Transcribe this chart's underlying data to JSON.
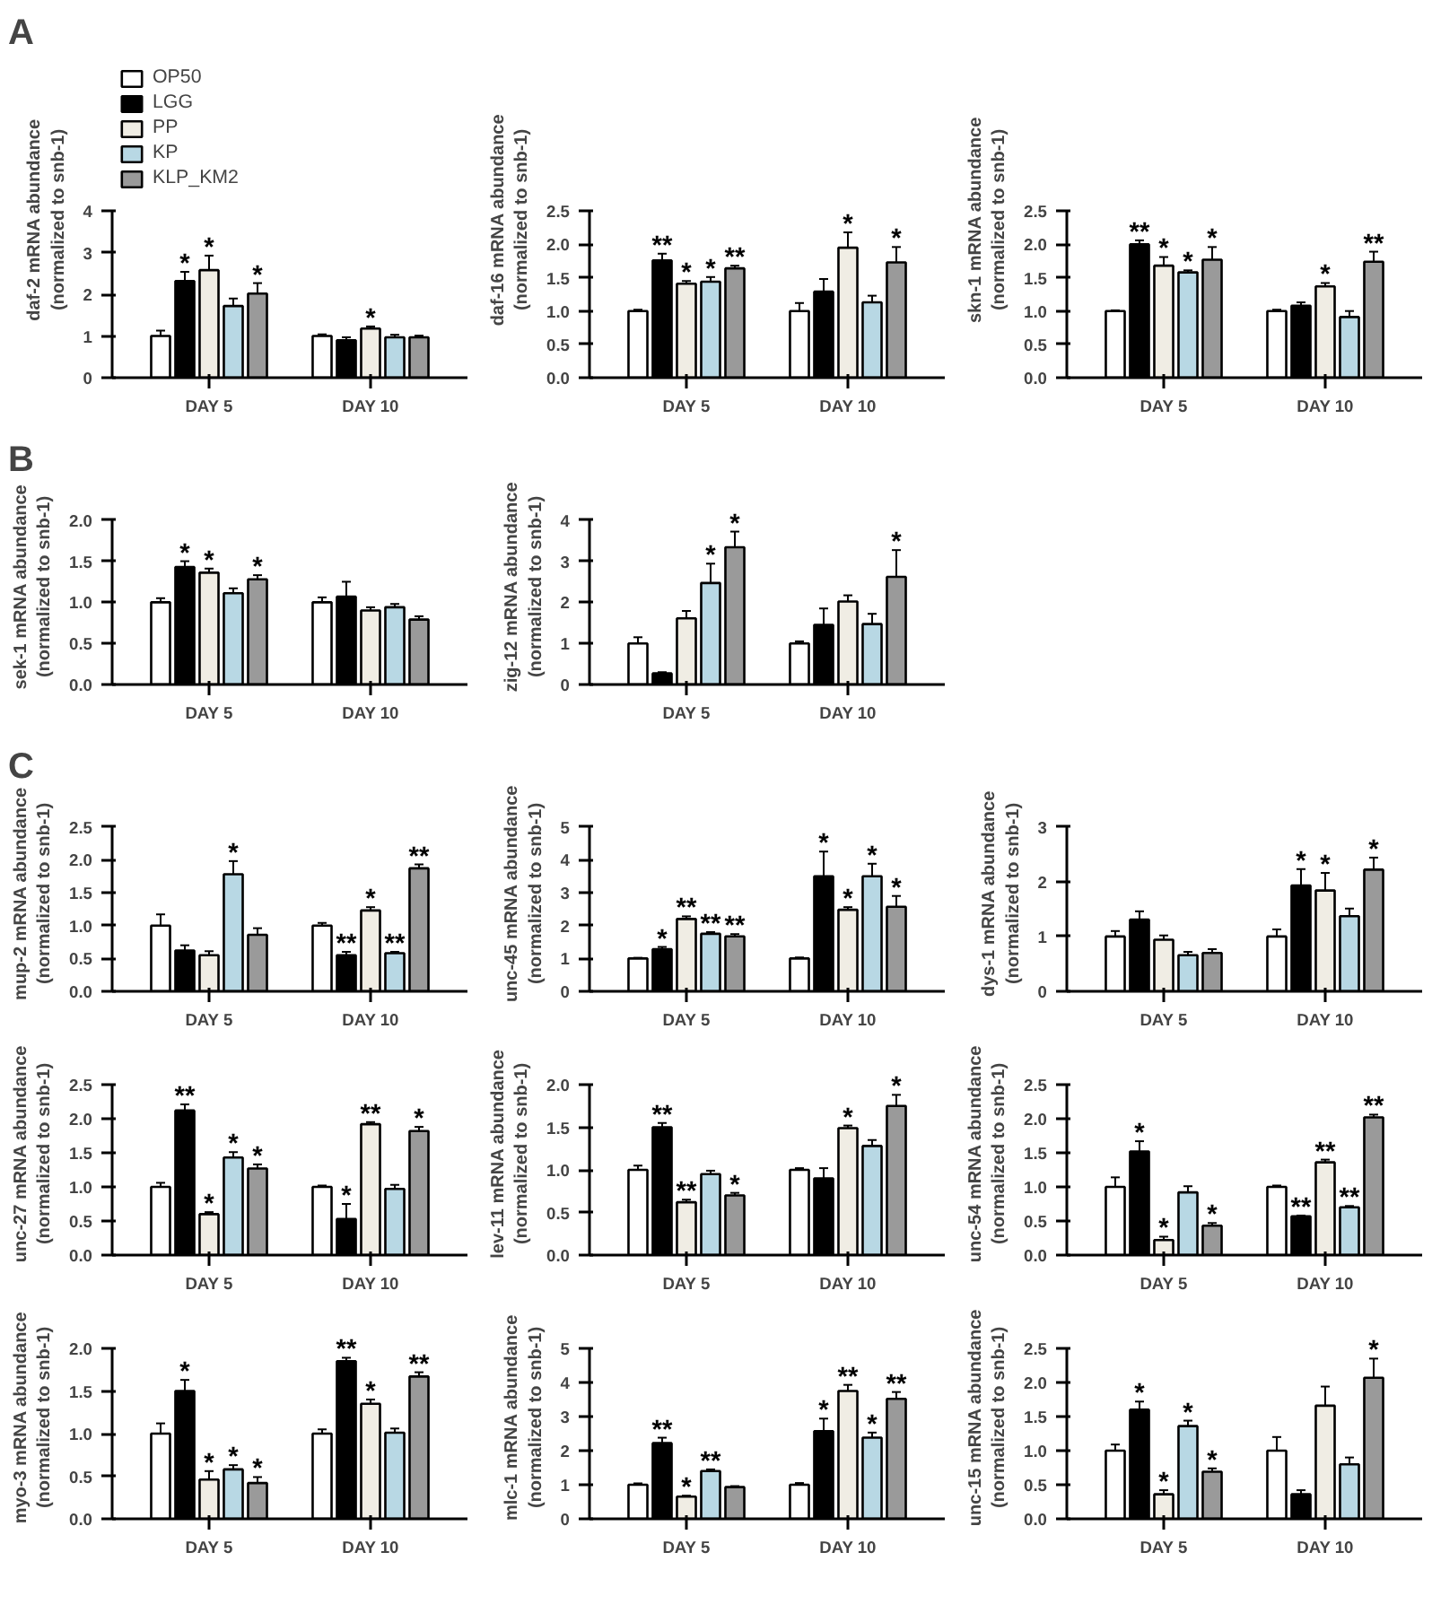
{
  "chart_data": [
    {
      "type": "bar",
      "title": "A",
      "legend": "top left",
      "ylabel": "daf-2 mRNA abundance\n(normalized to snb-1)",
      "categories": [
        "DAY 5",
        "DAY 10"
      ],
      "ylim": [
        0,
        4
      ],
      "yticks": [
        0,
        1,
        2,
        3,
        4
      ],
      "series": [
        {
          "name": "OP50",
          "color": "#ffffff",
          "values": [
            1.0,
            1.0
          ],
          "errors": [
            0.13,
            0.04
          ],
          "value_labels": [
            null,
            null
          ]
        },
        {
          "name": "LGG",
          "color": "#000000",
          "values": [
            2.32,
            0.9
          ],
          "errors": [
            0.22,
            0.07
          ],
          "value_labels": [
            "*",
            null
          ]
        },
        {
          "name": "PP",
          "color": "#f0ede4",
          "values": [
            2.58,
            1.18
          ],
          "errors": [
            0.35,
            0.05
          ],
          "value_labels": [
            "*",
            "*"
          ]
        },
        {
          "name": "KP",
          "color": "#b8d8e4",
          "values": [
            1.72,
            0.97
          ],
          "errors": [
            0.18,
            0.06
          ],
          "value_labels": [
            null,
            null
          ]
        },
        {
          "name": "KLP_KM2",
          "color": "#9a9a9a",
          "values": [
            2.02,
            0.97
          ],
          "errors": [
            0.25,
            0.04
          ],
          "value_labels": [
            "*",
            null
          ]
        }
      ]
    },
    {
      "type": "bar",
      "ylabel": "daf-16 mRNA abundance\n(normalized to snb-1)",
      "categories": [
        "DAY 5",
        "DAY 10"
      ],
      "ylim": [
        0,
        2.5
      ],
      "yticks": [
        {
          "value": 0,
          "label": "0.0"
        },
        {
          "value": 0.5,
          "label": "0.5"
        },
        {
          "value": 1,
          "label": "1.0"
        },
        {
          "value": 1.5,
          "label": "1.5"
        },
        {
          "value": 2,
          "label": "2.0"
        },
        {
          "value": 2.5,
          "label": "2.5"
        }
      ],
      "series": [
        {
          "color": "#ffffff",
          "values": [
            1.0,
            1.0
          ],
          "errors": [
            0.02,
            0.12
          ],
          "value_labels": [
            null,
            null
          ]
        },
        {
          "color": "#000000",
          "values": [
            1.76,
            1.29
          ],
          "errors": [
            0.1,
            0.19
          ],
          "value_labels": [
            "**",
            null
          ]
        },
        {
          "color": "#f0ede4",
          "values": [
            1.41,
            1.95
          ],
          "errors": [
            0.04,
            0.23
          ],
          "value_labels": [
            "*",
            "*"
          ]
        },
        {
          "color": "#b8d8e4",
          "values": [
            1.44,
            1.13
          ],
          "errors": [
            0.07,
            0.1
          ],
          "value_labels": [
            "*",
            null
          ]
        },
        {
          "color": "#9a9a9a",
          "values": [
            1.64,
            1.73
          ],
          "errors": [
            0.04,
            0.23
          ],
          "value_labels": [
            "**",
            "*"
          ]
        }
      ]
    },
    {
      "type": "bar",
      "ylabel": "skn-1 mRNA abundance\n(normalized to snb-1)",
      "categories": [
        "DAY 5",
        "DAY 10"
      ],
      "ylim": [
        0,
        2.5
      ],
      "yticks": [
        {
          "value": 0,
          "label": "0.0"
        },
        {
          "value": 0.5,
          "label": "0.5"
        },
        {
          "value": 1,
          "label": "1.0"
        },
        {
          "value": 1.5,
          "label": "1.5"
        },
        {
          "value": 2,
          "label": "2.0"
        },
        {
          "value": 2.5,
          "label": "2.5"
        }
      ],
      "series": [
        {
          "color": "#ffffff",
          "values": [
            1.0,
            1.0
          ],
          "errors": [
            0.01,
            0.02
          ],
          "value_labels": [
            null,
            null
          ]
        },
        {
          "color": "#000000",
          "values": [
            2.0,
            1.08
          ],
          "errors": [
            0.06,
            0.05
          ],
          "value_labels": [
            "**",
            null
          ]
        },
        {
          "color": "#f0ede4",
          "values": [
            1.68,
            1.37
          ],
          "errors": [
            0.13,
            0.05
          ],
          "value_labels": [
            "*",
            "*"
          ]
        },
        {
          "color": "#b8d8e4",
          "values": [
            1.58,
            0.91
          ],
          "errors": [
            0.03,
            0.09
          ],
          "value_labels": [
            "*",
            null
          ]
        },
        {
          "color": "#9a9a9a",
          "values": [
            1.77,
            1.74
          ],
          "errors": [
            0.19,
            0.15
          ],
          "value_labels": [
            "*",
            "**"
          ]
        }
      ]
    },
    {
      "type": "bar",
      "title": "B",
      "ylabel": "sek-1 mRNA abundance\n(normalized to snb-1)",
      "categories": [
        "DAY 5",
        "DAY 10"
      ],
      "ylim": [
        0,
        2
      ],
      "yticks": [
        {
          "value": 0,
          "label": "0.0"
        },
        {
          "value": 0.5,
          "label": "0.5"
        },
        {
          "value": 1,
          "label": "1.0"
        },
        {
          "value": 1.5,
          "label": "1.5"
        },
        {
          "value": 2,
          "label": "2.0"
        }
      ],
      "series": [
        {
          "color": "#ffffff",
          "values": [
            1.0,
            1.0
          ],
          "errors": [
            0.05,
            0.06
          ],
          "value_labels": [
            null,
            null
          ]
        },
        {
          "color": "#000000",
          "values": [
            1.43,
            1.07
          ],
          "errors": [
            0.07,
            0.18
          ],
          "value_labels": [
            "*",
            null
          ]
        },
        {
          "color": "#f0ede4",
          "values": [
            1.36,
            0.9
          ],
          "errors": [
            0.05,
            0.04
          ],
          "value_labels": [
            "*",
            null
          ]
        },
        {
          "color": "#b8d8e4",
          "values": [
            1.11,
            0.94
          ],
          "errors": [
            0.06,
            0.04
          ],
          "value_labels": [
            null,
            null
          ]
        },
        {
          "color": "#9a9a9a",
          "values": [
            1.28,
            0.79
          ],
          "errors": [
            0.05,
            0.04
          ],
          "value_labels": [
            "*",
            null
          ]
        }
      ]
    },
    {
      "type": "bar",
      "ylabel": "zig-12 mRNA abundance\n(normalized to snb-1)",
      "categories": [
        "DAY 5",
        "DAY 10"
      ],
      "ylim": [
        0,
        4
      ],
      "yticks": [
        0,
        1,
        2,
        3,
        4
      ],
      "series": [
        {
          "color": "#ffffff",
          "values": [
            1.0,
            1.0
          ],
          "errors": [
            0.15,
            0.05
          ],
          "value_labels": [
            null,
            null
          ]
        },
        {
          "color": "#000000",
          "values": [
            0.27,
            1.45
          ],
          "errors": [
            0.03,
            0.4
          ],
          "value_labels": [
            null,
            null
          ]
        },
        {
          "color": "#f0ede4",
          "values": [
            1.61,
            2.02
          ],
          "errors": [
            0.18,
            0.15
          ],
          "value_labels": [
            null,
            null
          ]
        },
        {
          "color": "#b8d8e4",
          "values": [
            2.47,
            1.47
          ],
          "errors": [
            0.47,
            0.25
          ],
          "value_labels": [
            "*",
            null
          ]
        },
        {
          "color": "#9a9a9a",
          "values": [
            3.34,
            2.62
          ],
          "errors": [
            0.38,
            0.65
          ],
          "value_labels": [
            "*",
            "*"
          ]
        }
      ]
    },
    {
      "type": "bar",
      "title": "C",
      "ylabel": "mup-2 mRNA abundance\n(normalized to snb-1)",
      "categories": [
        "DAY 5",
        "DAY 10"
      ],
      "ylim": [
        0,
        2.5
      ],
      "yticks": [
        {
          "value": 0,
          "label": "0.0"
        },
        {
          "value": 0.5,
          "label": "0.5"
        },
        {
          "value": 1,
          "label": "1.0"
        },
        {
          "value": 1.5,
          "label": "1.5"
        },
        {
          "value": 2,
          "label": "2.0"
        },
        {
          "value": 2.5,
          "label": "2.5"
        }
      ],
      "series": [
        {
          "color": "#ffffff",
          "values": [
            1.0,
            1.0
          ],
          "errors": [
            0.17,
            0.04
          ],
          "value_labels": [
            null,
            null
          ]
        },
        {
          "color": "#000000",
          "values": [
            0.62,
            0.55
          ],
          "errors": [
            0.08,
            0.05
          ],
          "value_labels": [
            null,
            "**"
          ]
        },
        {
          "color": "#f0ede4",
          "values": [
            0.55,
            1.23
          ],
          "errors": [
            0.06,
            0.05
          ],
          "value_labels": [
            null,
            "*"
          ]
        },
        {
          "color": "#b8d8e4",
          "values": [
            1.78,
            0.58
          ],
          "errors": [
            0.2,
            0.02
          ],
          "value_labels": [
            "*",
            "**"
          ]
        },
        {
          "color": "#9a9a9a",
          "values": [
            0.86,
            1.87
          ],
          "errors": [
            0.1,
            0.06
          ],
          "value_labels": [
            null,
            "**"
          ]
        }
      ]
    },
    {
      "type": "bar",
      "ylabel": "unc-45 mRNA abundance\n(normalized to snb-1)",
      "categories": [
        "DAY 5",
        "DAY 10"
      ],
      "ylim": [
        0,
        5
      ],
      "yticks": [
        0,
        1,
        2,
        3,
        4,
        5
      ],
      "series": [
        {
          "color": "#ffffff",
          "values": [
            1.0,
            1.0
          ],
          "errors": [
            0.02,
            0.03
          ],
          "value_labels": [
            null,
            null
          ]
        },
        {
          "color": "#000000",
          "values": [
            1.28,
            3.5
          ],
          "errors": [
            0.07,
            0.75
          ],
          "value_labels": [
            "*",
            "*"
          ]
        },
        {
          "color": "#f0ede4",
          "values": [
            2.2,
            2.48
          ],
          "errors": [
            0.08,
            0.08
          ],
          "value_labels": [
            "**",
            "*"
          ]
        },
        {
          "color": "#b8d8e4",
          "values": [
            1.75,
            3.5
          ],
          "errors": [
            0.05,
            0.38
          ],
          "value_labels": [
            "**",
            "*"
          ]
        },
        {
          "color": "#9a9a9a",
          "values": [
            1.67,
            2.57
          ],
          "errors": [
            0.07,
            0.33
          ],
          "value_labels": [
            "**",
            "*"
          ]
        }
      ]
    },
    {
      "type": "bar",
      "ylabel": "dys-1 mRNA abundance\n(normalized to snb-1)",
      "categories": [
        "DAY 5",
        "DAY 10"
      ],
      "ylim": [
        0,
        3
      ],
      "yticks": [
        0,
        1,
        2,
        3
      ],
      "series": [
        {
          "color": "#ffffff",
          "values": [
            1.0,
            1.0
          ],
          "errors": [
            0.1,
            0.13
          ],
          "value_labels": [
            null,
            null
          ]
        },
        {
          "color": "#000000",
          "values": [
            1.31,
            1.93
          ],
          "errors": [
            0.15,
            0.3
          ],
          "value_labels": [
            null,
            "*"
          ]
        },
        {
          "color": "#f0ede4",
          "values": [
            0.94,
            1.84
          ],
          "errors": [
            0.08,
            0.32
          ],
          "value_labels": [
            null,
            "*"
          ]
        },
        {
          "color": "#b8d8e4",
          "values": [
            0.66,
            1.37
          ],
          "errors": [
            0.06,
            0.14
          ],
          "value_labels": [
            null,
            null
          ]
        },
        {
          "color": "#9a9a9a",
          "values": [
            0.7,
            2.22
          ],
          "errors": [
            0.07,
            0.22
          ],
          "value_labels": [
            null,
            "*"
          ]
        }
      ]
    },
    {
      "type": "bar",
      "ylabel": "unc-27 mRNA abundance\n(normalized to snb-1)",
      "categories": [
        "DAY 5",
        "DAY 10"
      ],
      "ylim": [
        0,
        2.5
      ],
      "yticks": [
        {
          "value": 0,
          "label": "0.0"
        },
        {
          "value": 0.5,
          "label": "0.5"
        },
        {
          "value": 1,
          "label": "1.0"
        },
        {
          "value": 1.5,
          "label": "1.5"
        },
        {
          "value": 2,
          "label": "2.0"
        },
        {
          "value": 2.5,
          "label": "2.5"
        }
      ],
      "series": [
        {
          "color": "#ffffff",
          "values": [
            1.0,
            1.0
          ],
          "errors": [
            0.06,
            0.02
          ],
          "value_labels": [
            null,
            null
          ]
        },
        {
          "color": "#000000",
          "values": [
            2.12,
            0.53
          ],
          "errors": [
            0.09,
            0.22
          ],
          "value_labels": [
            "**",
            "*"
          ]
        },
        {
          "color": "#f0ede4",
          "values": [
            0.6,
            1.92
          ],
          "errors": [
            0.03,
            0.03
          ],
          "value_labels": [
            "*",
            "**"
          ]
        },
        {
          "color": "#b8d8e4",
          "values": [
            1.43,
            0.97
          ],
          "errors": [
            0.08,
            0.06
          ],
          "value_labels": [
            "*",
            null
          ]
        },
        {
          "color": "#9a9a9a",
          "values": [
            1.27,
            1.82
          ],
          "errors": [
            0.06,
            0.06
          ],
          "value_labels": [
            "*",
            "*"
          ]
        }
      ]
    },
    {
      "type": "bar",
      "ylabel": "lev-11 mRNA abundance\n(normalized to snb-1)",
      "categories": [
        "DAY 5",
        "DAY 10"
      ],
      "ylim": [
        0,
        2
      ],
      "yticks": [
        {
          "value": 0,
          "label": "0.0"
        },
        {
          "value": 0.5,
          "label": "0.5"
        },
        {
          "value": 1,
          "label": "1.0"
        },
        {
          "value": 1.5,
          "label": "1.5"
        },
        {
          "value": 2,
          "label": "2.0"
        }
      ],
      "series": [
        {
          "color": "#ffffff",
          "values": [
            1.0,
            1.0
          ],
          "errors": [
            0.05,
            0.02
          ],
          "value_labels": [
            null,
            null
          ]
        },
        {
          "color": "#000000",
          "values": [
            1.5,
            0.9
          ],
          "errors": [
            0.05,
            0.12
          ],
          "value_labels": [
            "**",
            null
          ]
        },
        {
          "color": "#f0ede4",
          "values": [
            0.62,
            1.49
          ],
          "errors": [
            0.03,
            0.03
          ],
          "value_labels": [
            "**",
            "*"
          ]
        },
        {
          "color": "#b8d8e4",
          "values": [
            0.95,
            1.28
          ],
          "errors": [
            0.04,
            0.07
          ],
          "value_labels": [
            null,
            null
          ]
        },
        {
          "color": "#9a9a9a",
          "values": [
            0.7,
            1.75
          ],
          "errors": [
            0.03,
            0.13
          ],
          "value_labels": [
            "*",
            "*"
          ]
        }
      ]
    },
    {
      "type": "bar",
      "ylabel": "unc-54 mRNA abundance\n(normalized to snb-1)",
      "categories": [
        "DAY 5",
        "DAY 10"
      ],
      "ylim": [
        0,
        2.5
      ],
      "yticks": [
        {
          "value": 0,
          "label": "0.0"
        },
        {
          "value": 0.5,
          "label": "0.5"
        },
        {
          "value": 1,
          "label": "1.0"
        },
        {
          "value": 1.5,
          "label": "1.5"
        },
        {
          "value": 2,
          "label": "2.0"
        },
        {
          "value": 2.5,
          "label": "2.5"
        }
      ],
      "series": [
        {
          "color": "#ffffff",
          "values": [
            1.0,
            1.0
          ],
          "errors": [
            0.14,
            0.02
          ],
          "value_labels": [
            null,
            null
          ]
        },
        {
          "color": "#000000",
          "values": [
            1.52,
            0.57
          ],
          "errors": [
            0.15,
            0.01
          ],
          "value_labels": [
            "*",
            "**"
          ]
        },
        {
          "color": "#f0ede4",
          "values": [
            0.22,
            1.36
          ],
          "errors": [
            0.05,
            0.04
          ],
          "value_labels": [
            "*",
            "**"
          ]
        },
        {
          "color": "#b8d8e4",
          "values": [
            0.92,
            0.7
          ],
          "errors": [
            0.09,
            0.02
          ],
          "value_labels": [
            null,
            "**"
          ]
        },
        {
          "color": "#9a9a9a",
          "values": [
            0.43,
            2.02
          ],
          "errors": [
            0.04,
            0.04
          ],
          "value_labels": [
            "*",
            "**"
          ]
        }
      ]
    },
    {
      "type": "bar",
      "ylabel": "myo-3 mRNA abundance\n(normalized to snb-1)",
      "categories": [
        "DAY 5",
        "DAY 10"
      ],
      "ylim": [
        0,
        2
      ],
      "yticks": [
        {
          "value": 0,
          "label": "0.0"
        },
        {
          "value": 0.5,
          "label": "0.5"
        },
        {
          "value": 1,
          "label": "1.0"
        },
        {
          "value": 1.5,
          "label": "1.5"
        },
        {
          "value": 2,
          "label": "2.0"
        }
      ],
      "series": [
        {
          "color": "#ffffff",
          "values": [
            1.0,
            1.0
          ],
          "errors": [
            0.12,
            0.05
          ],
          "value_labels": [
            null,
            null
          ]
        },
        {
          "color": "#000000",
          "values": [
            1.5,
            1.85
          ],
          "errors": [
            0.13,
            0.04
          ],
          "value_labels": [
            "*",
            "**"
          ]
        },
        {
          "color": "#f0ede4",
          "values": [
            0.46,
            1.35
          ],
          "errors": [
            0.1,
            0.05
          ],
          "value_labels": [
            "*",
            "*"
          ]
        },
        {
          "color": "#b8d8e4",
          "values": [
            0.58,
            1.01
          ],
          "errors": [
            0.05,
            0.05
          ],
          "value_labels": [
            "*",
            null
          ]
        },
        {
          "color": "#9a9a9a",
          "values": [
            0.42,
            1.67
          ],
          "errors": [
            0.07,
            0.05
          ],
          "value_labels": [
            "*",
            "**"
          ]
        }
      ]
    },
    {
      "type": "bar",
      "ylabel": "mlc-1 mRNA abundance\n(normalized to snb-1)",
      "categories": [
        "DAY 5",
        "DAY 10"
      ],
      "ylim": [
        0,
        5
      ],
      "yticks": [
        0,
        1,
        2,
        3,
        4,
        5
      ],
      "series": [
        {
          "color": "#ffffff",
          "values": [
            1.0,
            1.0
          ],
          "errors": [
            0.04,
            0.05
          ],
          "value_labels": [
            null,
            null
          ]
        },
        {
          "color": "#000000",
          "values": [
            2.22,
            2.57
          ],
          "errors": [
            0.16,
            0.37
          ],
          "value_labels": [
            "**",
            "*"
          ]
        },
        {
          "color": "#f0ede4",
          "values": [
            0.65,
            3.75
          ],
          "errors": [
            0.03,
            0.18
          ],
          "value_labels": [
            "*",
            "**"
          ]
        },
        {
          "color": "#b8d8e4",
          "values": [
            1.4,
            2.38
          ],
          "errors": [
            0.05,
            0.15
          ],
          "value_labels": [
            "**",
            "*"
          ]
        },
        {
          "color": "#9a9a9a",
          "values": [
            0.93,
            3.52
          ],
          "errors": [
            0.03,
            0.2
          ],
          "value_labels": [
            null,
            "**"
          ]
        }
      ]
    },
    {
      "type": "bar",
      "ylabel": "unc-15 mRNA abundance\n(normalized to snb-1)",
      "categories": [
        "DAY 5",
        "DAY 10"
      ],
      "ylim": [
        0,
        2.5
      ],
      "yticks": [
        {
          "value": 0,
          "label": "0.0"
        },
        {
          "value": 0.5,
          "label": "0.5"
        },
        {
          "value": 1,
          "label": "1.0"
        },
        {
          "value": 1.5,
          "label": "1.5"
        },
        {
          "value": 2,
          "label": "2.0"
        },
        {
          "value": 2.5,
          "label": "2.5"
        }
      ],
      "series": [
        {
          "color": "#ffffff",
          "values": [
            1.0,
            1.0
          ],
          "errors": [
            0.09,
            0.2
          ],
          "value_labels": [
            null,
            null
          ]
        },
        {
          "color": "#000000",
          "values": [
            1.6,
            0.36
          ],
          "errors": [
            0.12,
            0.06
          ],
          "value_labels": [
            "*",
            null
          ]
        },
        {
          "color": "#f0ede4",
          "values": [
            0.36,
            1.66
          ],
          "errors": [
            0.06,
            0.28
          ],
          "value_labels": [
            "*",
            null
          ]
        },
        {
          "color": "#b8d8e4",
          "values": [
            1.36,
            0.8
          ],
          "errors": [
            0.08,
            0.1
          ],
          "value_labels": [
            "*",
            null
          ]
        },
        {
          "color": "#9a9a9a",
          "values": [
            0.69,
            2.07
          ],
          "errors": [
            0.05,
            0.28
          ],
          "value_labels": [
            "*",
            "*"
          ]
        }
      ]
    }
  ]
}
